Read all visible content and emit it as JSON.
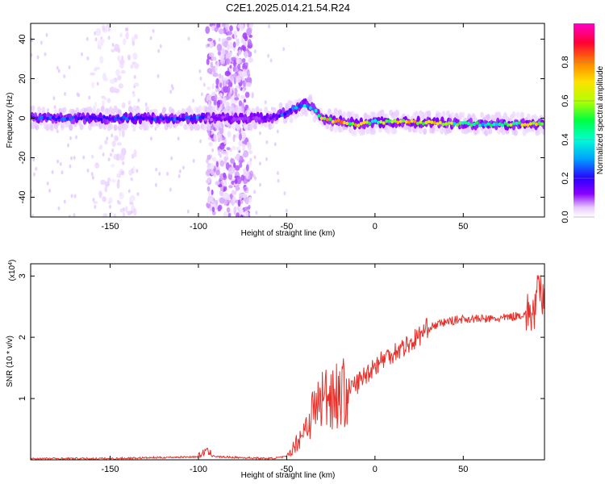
{
  "chart_data": [
    {
      "type": "heatmap",
      "title": "C2E1.2025.014.21.54.R24",
      "xlabel": "Height of straight line (km)",
      "ylabel": "Frequency (Hz)",
      "xlim": [
        -195,
        96
      ],
      "ylim": [
        -50,
        48
      ],
      "xticks": [
        -150,
        -100,
        -50,
        0,
        50
      ],
      "yticks": [
        -40,
        -20,
        0,
        20,
        40
      ],
      "colorbar": {
        "label": "Normalized spectral amplitude",
        "range": [
          0,
          1
        ],
        "ticks": [
          "0.0",
          "0.2",
          "0.4",
          "0.6",
          "0.8"
        ],
        "colormap": [
          "#ffffff",
          "#e6c8ff",
          "#8a00ff",
          "#2a00ff",
          "#00a0ff",
          "#00ffd0",
          "#00ff40",
          "#b4ff00",
          "#ffe000",
          "#ff8000",
          "#ff0033",
          "#ff00c8"
        ]
      },
      "ridge": {
        "x": [
          -195,
          -150,
          -110,
          -100,
          -95,
          -70,
          -60,
          -50,
          -45,
          -40,
          -35,
          -30,
          -25,
          -15,
          -10,
          0,
          10,
          30,
          50,
          70,
          90,
          96
        ],
        "frequency_hz": [
          0,
          0,
          0,
          0,
          0,
          0,
          0,
          3,
          5,
          7,
          5,
          0,
          -1,
          -2,
          -3,
          -2,
          -2,
          -2,
          -3,
          -3,
          -3,
          -3
        ],
        "amplitude": [
          0.35,
          0.35,
          0.35,
          0.4,
          0.2,
          0.2,
          0.25,
          0.4,
          0.45,
          0.5,
          0.45,
          0.9,
          0.9,
          0.85,
          0.95,
          0.6,
          0.8,
          0.9,
          0.6,
          0.55,
          0.9,
          0.6
        ]
      },
      "noise_bands_x": [
        [
          -95,
          -70
        ],
        [
          -160,
          -135
        ]
      ]
    },
    {
      "type": "line",
      "title": "",
      "xlabel": "Height of straight line (km)",
      "ylabel": "SNR (10 * v/v)",
      "scale_label": "(x10",
      "scale_exponent": "4",
      "xlim": [
        -195,
        96
      ],
      "ylim": [
        0,
        3.2
      ],
      "xticks": [
        -150,
        -100,
        -50,
        0,
        50
      ],
      "yticks": [
        1,
        2,
        3
      ],
      "color": "#e8302a",
      "series": [
        {
          "x": [
            -195,
            -150,
            -100,
            -96,
            -90,
            -60,
            -50,
            -45,
            -40,
            -35,
            -30,
            -25,
            -20,
            -15,
            -10,
            -5,
            0,
            10,
            20,
            30,
            40,
            50,
            60,
            70,
            80,
            90,
            93,
            96
          ],
          "values": [
            0.02,
            0.02,
            0.05,
            0.15,
            0.05,
            0.02,
            0.05,
            0.25,
            0.5,
            0.8,
            1.0,
            1.1,
            1.05,
            1.15,
            1.25,
            1.4,
            1.55,
            1.75,
            1.9,
            2.15,
            2.25,
            2.3,
            2.3,
            2.3,
            2.35,
            2.4,
            2.8,
            2.5
          ]
        }
      ]
    }
  ]
}
